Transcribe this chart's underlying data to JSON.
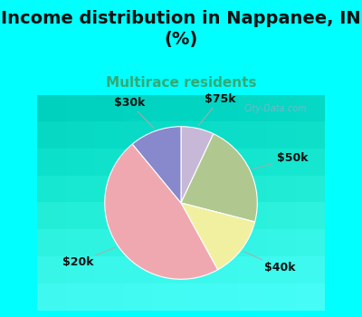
{
  "title": "Income distribution in Nappanee, IN\n(%)",
  "subtitle": "Multirace residents",
  "background_color": "#00FFFF",
  "chart_bg": "#e8f5e8",
  "slices": [
    {
      "label": "$75k",
      "value": 7,
      "color": "#c8b8d8"
    },
    {
      "label": "$50k",
      "value": 22,
      "color": "#b0c890"
    },
    {
      "label": "$40k",
      "value": 13,
      "color": "#f0f0a0"
    },
    {
      "label": "$20k",
      "value": 47,
      "color": "#f0a8b0"
    },
    {
      "label": "$30k",
      "value": 11,
      "color": "#8888cc"
    }
  ],
  "title_fontsize": 14,
  "subtitle_fontsize": 11,
  "label_fontsize": 9,
  "watermark": "City-Data.com"
}
